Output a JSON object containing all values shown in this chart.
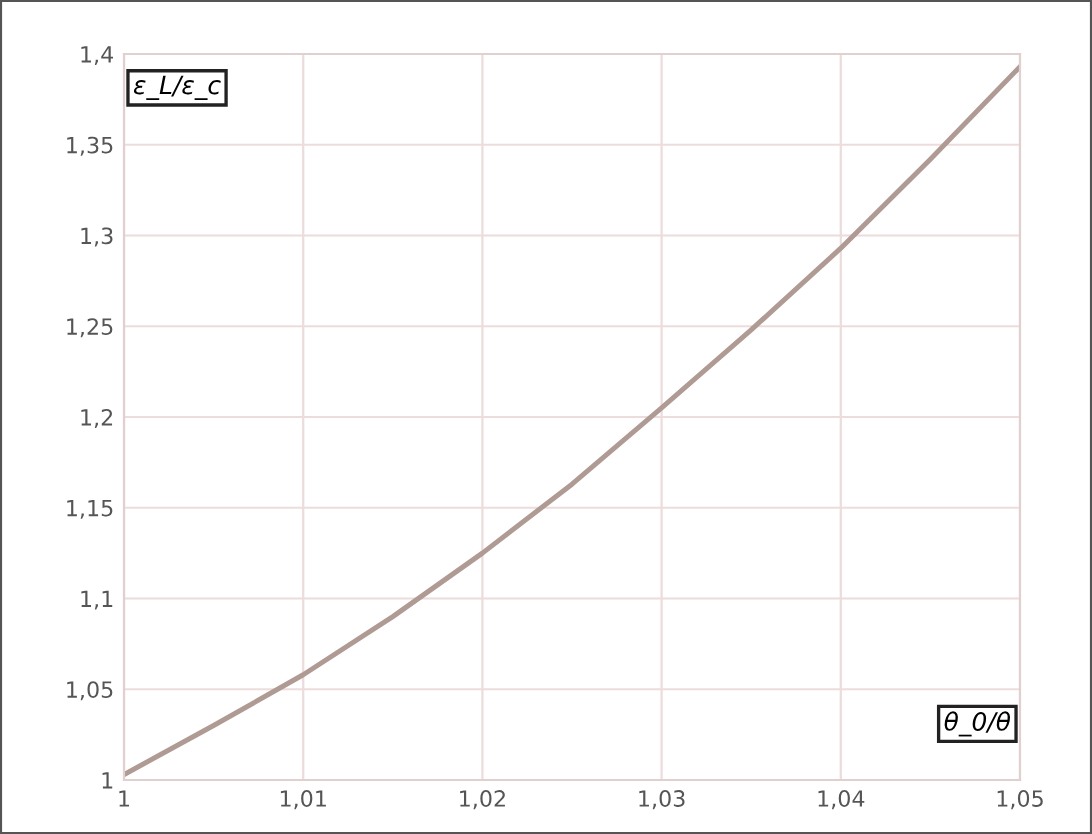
{
  "chart_data": {
    "type": "line",
    "xlabel": "θ_0/θ",
    "ylabel": "ε_L/ε_c",
    "x": [
      1,
      1.005,
      1.01,
      1.015,
      1.02,
      1.025,
      1.03,
      1.035,
      1.04,
      1.045,
      1.05
    ],
    "series": [
      {
        "color": "#b09a94",
        "values": [
          1.003,
          1.03,
          1.058,
          1.09,
          1.125,
          1.163,
          1.205,
          1.248,
          1.293,
          1.342,
          1.393
        ]
      }
    ],
    "xlim": [
      1,
      1.05
    ],
    "ylim": [
      1,
      1.4
    ],
    "xticks": [
      1,
      {
        "value": 1.01,
        "label": "1,01"
      },
      {
        "value": 1.02,
        "label": "1,02"
      },
      {
        "value": 1.03,
        "label": "1,03"
      },
      {
        "value": 1.04,
        "label": "1,04"
      },
      {
        "value": 1.05,
        "label": "1,05"
      }
    ],
    "yticks": [
      1,
      {
        "value": 1.05,
        "label": "1,05"
      },
      {
        "value": 1.1,
        "label": "1,1"
      },
      {
        "value": 1.15,
        "label": "1,15"
      },
      {
        "value": 1.2,
        "label": "1,2"
      },
      {
        "value": 1.25,
        "label": "1,25"
      },
      {
        "value": 1.3,
        "label": "1,3"
      },
      {
        "value": 1.35,
        "label": "1,35"
      },
      {
        "value": 1.4,
        "label": "1,4"
      }
    ],
    "grid": true,
    "line_style": "solid",
    "marker": "none"
  }
}
